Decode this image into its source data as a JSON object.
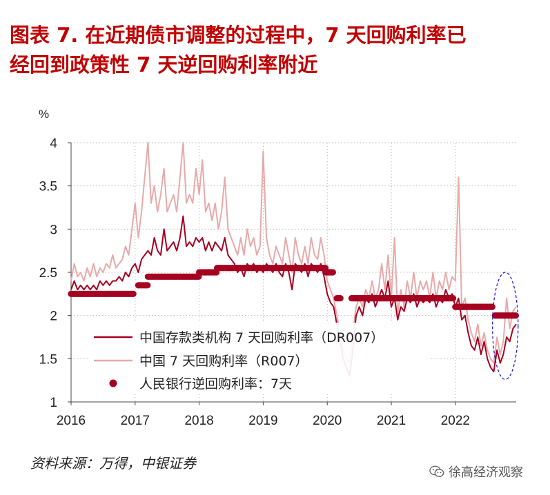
{
  "header": {
    "title_line1": "图表 7.  在近期债市调整的过程中，7 天回购利率已",
    "title_line2": "经回到政策性 7 天逆回购利率附近"
  },
  "footer": {
    "source": "资料来源：万得，中银证券",
    "watermark": "徐高经济观察"
  },
  "colors": {
    "dr007": "#a50021",
    "r007": "#e8a9a9",
    "policy": "#a50021",
    "highlight": "#1f1fd6",
    "title": "#c00000"
  },
  "chart_data": {
    "type": "line",
    "ylabel": "%",
    "ylim": [
      1,
      4
    ],
    "xlim": [
      2016.0,
      2022.95
    ],
    "yticks": [
      "1",
      "1.5",
      "2",
      "2.5",
      "3",
      "3.5",
      "4"
    ],
    "xticks": [
      "2016",
      "2017",
      "2018",
      "2019",
      "2020",
      "2021",
      "2022"
    ],
    "grid": "dotted",
    "legend_position": "lower-left",
    "series": [
      {
        "name": "中国存款类机构 7 天回购利率（DR007）",
        "style": "line",
        "points": [
          [
            2016.0,
            2.3
          ],
          [
            2016.05,
            2.4
          ],
          [
            2016.1,
            2.3
          ],
          [
            2016.15,
            2.35
          ],
          [
            2016.2,
            2.3
          ],
          [
            2016.25,
            2.35
          ],
          [
            2016.3,
            2.3
          ],
          [
            2016.35,
            2.35
          ],
          [
            2016.4,
            2.3
          ],
          [
            2016.45,
            2.4
          ],
          [
            2016.5,
            2.35
          ],
          [
            2016.55,
            2.4
          ],
          [
            2016.6,
            2.35
          ],
          [
            2016.65,
            2.4
          ],
          [
            2016.7,
            2.4
          ],
          [
            2016.75,
            2.45
          ],
          [
            2016.8,
            2.4
          ],
          [
            2016.85,
            2.5
          ],
          [
            2016.9,
            2.45
          ],
          [
            2016.95,
            2.55
          ],
          [
            2017.0,
            2.6
          ],
          [
            2017.05,
            2.5
          ],
          [
            2017.1,
            2.65
          ],
          [
            2017.15,
            2.7
          ],
          [
            2017.2,
            2.75
          ],
          [
            2017.25,
            2.7
          ],
          [
            2017.3,
            2.9
          ],
          [
            2017.35,
            2.75
          ],
          [
            2017.4,
            2.7
          ],
          [
            2017.45,
            3.0
          ],
          [
            2017.5,
            2.75
          ],
          [
            2017.55,
            2.8
          ],
          [
            2017.6,
            2.85
          ],
          [
            2017.65,
            2.75
          ],
          [
            2017.7,
            2.9
          ],
          [
            2017.75,
            3.15
          ],
          [
            2017.8,
            2.8
          ],
          [
            2017.85,
            2.85
          ],
          [
            2017.9,
            2.8
          ],
          [
            2017.95,
            2.9
          ],
          [
            2018.0,
            2.85
          ],
          [
            2018.05,
            2.9
          ],
          [
            2018.1,
            2.75
          ],
          [
            2018.15,
            2.85
          ],
          [
            2018.2,
            2.75
          ],
          [
            2018.25,
            2.85
          ],
          [
            2018.3,
            2.8
          ],
          [
            2018.35,
            2.75
          ],
          [
            2018.4,
            2.9
          ],
          [
            2018.45,
            2.7
          ],
          [
            2018.5,
            2.65
          ],
          [
            2018.55,
            2.6
          ],
          [
            2018.6,
            2.5
          ],
          [
            2018.65,
            2.55
          ],
          [
            2018.7,
            2.45
          ],
          [
            2018.75,
            2.6
          ],
          [
            2018.8,
            2.55
          ],
          [
            2018.85,
            2.6
          ],
          [
            2018.9,
            2.5
          ],
          [
            2018.95,
            2.55
          ],
          [
            2019.0,
            2.5
          ],
          [
            2019.05,
            2.6
          ],
          [
            2019.1,
            2.55
          ],
          [
            2019.15,
            2.5
          ],
          [
            2019.2,
            2.6
          ],
          [
            2019.25,
            2.5
          ],
          [
            2019.3,
            2.45
          ],
          [
            2019.35,
            2.6
          ],
          [
            2019.4,
            2.5
          ],
          [
            2019.45,
            2.3
          ],
          [
            2019.5,
            2.6
          ],
          [
            2019.55,
            2.55
          ],
          [
            2019.6,
            2.5
          ],
          [
            2019.65,
            2.6
          ],
          [
            2019.7,
            2.45
          ],
          [
            2019.75,
            2.6
          ],
          [
            2019.8,
            2.55
          ],
          [
            2019.85,
            2.5
          ],
          [
            2019.9,
            2.6
          ],
          [
            2019.95,
            2.45
          ],
          [
            2020.0,
            2.25
          ],
          [
            2020.05,
            2.15
          ],
          [
            2020.1,
            2.1
          ],
          [
            2020.15,
            1.9
          ],
          [
            2020.2,
            1.7
          ],
          [
            2020.25,
            1.5
          ],
          [
            2020.3,
            1.4
          ],
          [
            2020.35,
            1.3
          ],
          [
            2020.4,
            1.6
          ],
          [
            2020.45,
            2.0
          ],
          [
            2020.5,
            2.1
          ],
          [
            2020.55,
            2.0
          ],
          [
            2020.6,
            2.2
          ],
          [
            2020.65,
            2.15
          ],
          [
            2020.7,
            2.25
          ],
          [
            2020.75,
            2.1
          ],
          [
            2020.8,
            2.2
          ],
          [
            2020.85,
            2.3
          ],
          [
            2020.9,
            2.2
          ],
          [
            2020.95,
            2.4
          ],
          [
            2021.0,
            2.1
          ],
          [
            2021.05,
            2.2
          ],
          [
            2021.1,
            1.95
          ],
          [
            2021.15,
            2.1
          ],
          [
            2021.2,
            2.05
          ],
          [
            2021.25,
            2.2
          ],
          [
            2021.3,
            2.15
          ],
          [
            2021.35,
            2.25
          ],
          [
            2021.4,
            2.1
          ],
          [
            2021.45,
            2.2
          ],
          [
            2021.5,
            2.15
          ],
          [
            2021.55,
            2.2
          ],
          [
            2021.6,
            2.15
          ],
          [
            2021.65,
            2.25
          ],
          [
            2021.7,
            2.1
          ],
          [
            2021.75,
            2.2
          ],
          [
            2021.8,
            2.15
          ],
          [
            2021.85,
            2.3
          ],
          [
            2021.9,
            2.2
          ],
          [
            2021.95,
            2.25
          ],
          [
            2022.0,
            2.1
          ],
          [
            2022.05,
            2.2
          ],
          [
            2022.1,
            1.95
          ],
          [
            2022.15,
            2.0
          ],
          [
            2022.2,
            1.8
          ],
          [
            2022.25,
            1.65
          ],
          [
            2022.3,
            1.6
          ],
          [
            2022.35,
            1.75
          ],
          [
            2022.4,
            1.55
          ],
          [
            2022.45,
            1.7
          ],
          [
            2022.5,
            1.5
          ],
          [
            2022.55,
            1.4
          ],
          [
            2022.6,
            1.35
          ],
          [
            2022.65,
            1.6
          ],
          [
            2022.7,
            1.45
          ],
          [
            2022.75,
            1.55
          ],
          [
            2022.8,
            1.75
          ],
          [
            2022.85,
            1.7
          ],
          [
            2022.9,
            1.85
          ],
          [
            2022.95,
            1.9
          ]
        ]
      },
      {
        "name": "中国 7 天回购利率（R007）",
        "style": "line",
        "points": [
          [
            2016.0,
            2.4
          ],
          [
            2016.05,
            2.6
          ],
          [
            2016.1,
            2.45
          ],
          [
            2016.15,
            2.5
          ],
          [
            2016.2,
            2.4
          ],
          [
            2016.25,
            2.55
          ],
          [
            2016.3,
            2.45
          ],
          [
            2016.35,
            2.6
          ],
          [
            2016.4,
            2.45
          ],
          [
            2016.45,
            2.55
          ],
          [
            2016.5,
            2.5
          ],
          [
            2016.55,
            2.6
          ],
          [
            2016.6,
            2.55
          ],
          [
            2016.65,
            2.7
          ],
          [
            2016.7,
            2.55
          ],
          [
            2016.75,
            2.6
          ],
          [
            2016.8,
            2.65
          ],
          [
            2016.85,
            2.8
          ],
          [
            2016.9,
            2.7
          ],
          [
            2016.95,
            3.0
          ],
          [
            2017.0,
            3.3
          ],
          [
            2017.05,
            2.9
          ],
          [
            2017.1,
            3.2
          ],
          [
            2017.15,
            3.6
          ],
          [
            2017.2,
            4.0
          ],
          [
            2017.25,
            3.3
          ],
          [
            2017.3,
            3.5
          ],
          [
            2017.35,
            3.2
          ],
          [
            2017.4,
            3.4
          ],
          [
            2017.45,
            3.7
          ],
          [
            2017.5,
            3.2
          ],
          [
            2017.55,
            3.3
          ],
          [
            2017.6,
            3.4
          ],
          [
            2017.65,
            3.2
          ],
          [
            2017.7,
            3.6
          ],
          [
            2017.75,
            4.0
          ],
          [
            2017.8,
            3.3
          ],
          [
            2017.85,
            3.4
          ],
          [
            2017.9,
            3.3
          ],
          [
            2017.95,
            3.7
          ],
          [
            2018.0,
            3.4
          ],
          [
            2018.05,
            3.8
          ],
          [
            2018.1,
            3.2
          ],
          [
            2018.15,
            3.3
          ],
          [
            2018.2,
            3.1
          ],
          [
            2018.25,
            3.3
          ],
          [
            2018.3,
            3.0
          ],
          [
            2018.35,
            3.2
          ],
          [
            2018.4,
            3.6
          ],
          [
            2018.45,
            3.0
          ],
          [
            2018.5,
            2.9
          ],
          [
            2018.55,
            2.8
          ],
          [
            2018.6,
            2.7
          ],
          [
            2018.65,
            2.9
          ],
          [
            2018.7,
            2.7
          ],
          [
            2018.75,
            3.0
          ],
          [
            2018.8,
            2.8
          ],
          [
            2018.85,
            2.9
          ],
          [
            2018.9,
            2.7
          ],
          [
            2018.95,
            2.8
          ],
          [
            2019.0,
            3.9
          ],
          [
            2019.05,
            2.9
          ],
          [
            2019.1,
            2.7
          ],
          [
            2019.15,
            2.6
          ],
          [
            2019.2,
            2.8
          ],
          [
            2019.25,
            2.7
          ],
          [
            2019.3,
            2.6
          ],
          [
            2019.35,
            2.9
          ],
          [
            2019.4,
            2.7
          ],
          [
            2019.45,
            2.5
          ],
          [
            2019.5,
            2.9
          ],
          [
            2019.55,
            2.7
          ],
          [
            2019.6,
            2.6
          ],
          [
            2019.65,
            2.8
          ],
          [
            2019.7,
            2.6
          ],
          [
            2019.75,
            2.9
          ],
          [
            2019.8,
            2.7
          ],
          [
            2019.85,
            2.65
          ],
          [
            2019.9,
            2.9
          ],
          [
            2019.95,
            2.7
          ],
          [
            2020.0,
            2.4
          ],
          [
            2020.05,
            2.3
          ],
          [
            2020.1,
            2.2
          ],
          [
            2020.15,
            2.0
          ],
          [
            2020.2,
            1.8
          ],
          [
            2020.25,
            1.6
          ],
          [
            2020.3,
            1.5
          ],
          [
            2020.35,
            1.45
          ],
          [
            2020.4,
            1.8
          ],
          [
            2020.45,
            2.1
          ],
          [
            2020.5,
            2.2
          ],
          [
            2020.55,
            2.1
          ],
          [
            2020.6,
            2.3
          ],
          [
            2020.65,
            2.2
          ],
          [
            2020.7,
            2.4
          ],
          [
            2020.75,
            2.2
          ],
          [
            2020.8,
            2.3
          ],
          [
            2020.85,
            2.6
          ],
          [
            2020.9,
            2.3
          ],
          [
            2020.95,
            2.7
          ],
          [
            2021.0,
            2.2
          ],
          [
            2021.05,
            2.9
          ],
          [
            2021.1,
            2.0
          ],
          [
            2021.15,
            2.3
          ],
          [
            2021.2,
            2.1
          ],
          [
            2021.25,
            2.4
          ],
          [
            2021.3,
            2.2
          ],
          [
            2021.35,
            2.5
          ],
          [
            2021.4,
            2.2
          ],
          [
            2021.45,
            2.4
          ],
          [
            2021.5,
            2.3
          ],
          [
            2021.55,
            2.4
          ],
          [
            2021.6,
            2.2
          ],
          [
            2021.65,
            2.5
          ],
          [
            2021.7,
            2.2
          ],
          [
            2021.75,
            2.4
          ],
          [
            2021.8,
            2.3
          ],
          [
            2021.85,
            2.5
          ],
          [
            2021.9,
            2.3
          ],
          [
            2021.95,
            2.45
          ],
          [
            2022.0,
            2.4
          ],
          [
            2022.05,
            3.6
          ],
          [
            2022.1,
            2.1
          ],
          [
            2022.15,
            2.2
          ],
          [
            2022.2,
            1.95
          ],
          [
            2022.25,
            1.8
          ],
          [
            2022.3,
            1.7
          ],
          [
            2022.35,
            1.9
          ],
          [
            2022.4,
            1.65
          ],
          [
            2022.45,
            1.8
          ],
          [
            2022.5,
            1.6
          ],
          [
            2022.55,
            1.5
          ],
          [
            2022.6,
            1.45
          ],
          [
            2022.65,
            1.75
          ],
          [
            2022.7,
            1.55
          ],
          [
            2022.75,
            1.7
          ],
          [
            2022.8,
            2.2
          ],
          [
            2022.85,
            1.85
          ],
          [
            2022.9,
            2.05
          ],
          [
            2022.95,
            2.1
          ]
        ]
      },
      {
        "name": "人民银行逆回购利率：7天",
        "style": "dots",
        "segments": [
          {
            "x_from": 2016.0,
            "x_to": 2016.98,
            "value": 2.25
          },
          {
            "x_from": 2017.05,
            "x_to": 2017.2,
            "value": 2.35
          },
          {
            "x_from": 2017.2,
            "x_to": 2018.0,
            "value": 2.45
          },
          {
            "x_from": 2018.0,
            "x_to": 2018.28,
            "value": 2.5
          },
          {
            "x_from": 2018.28,
            "x_to": 2018.98,
            "value": 2.55
          },
          {
            "x_from": 2019.0,
            "x_to": 2019.98,
            "value": 2.55
          },
          {
            "x_from": 2019.98,
            "x_to": 2020.1,
            "value": 2.5
          },
          {
            "x_from": 2020.15,
            "x_to": 2020.22,
            "value": 2.2
          },
          {
            "x_from": 2020.38,
            "x_to": 2021.98,
            "value": 2.2
          },
          {
            "x_from": 2022.0,
            "x_to": 2022.58,
            "value": 2.1
          },
          {
            "x_from": 2022.62,
            "x_to": 2022.95,
            "value": 2.0
          }
        ]
      }
    ],
    "annotations": [
      {
        "type": "ellipse",
        "style": "dashed",
        "color": "#1f1fd6",
        "x_center": 2022.78,
        "y_center": 1.88,
        "x_radius": 0.2,
        "y_radius": 0.62
      }
    ]
  }
}
